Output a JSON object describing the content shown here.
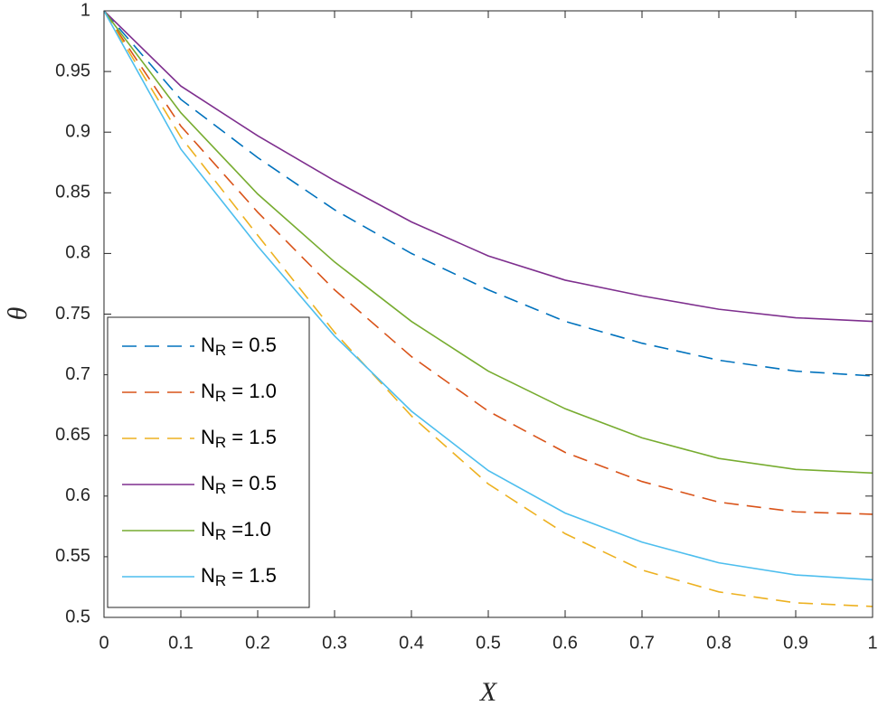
{
  "chart_data": {
    "type": "line",
    "x_label": "X",
    "y_label": "θ",
    "x": [
      0,
      0.1,
      0.2,
      0.3,
      0.4,
      0.5,
      0.6,
      0.7,
      0.8,
      0.9,
      1
    ],
    "series": [
      {
        "name": "N_R = 0.5",
        "color": "#0072bd",
        "line_style": "dashed",
        "values": [
          1,
          0.927,
          0.879,
          0.836,
          0.8,
          0.77,
          0.744,
          0.726,
          0.712,
          0.703,
          0.699
        ]
      },
      {
        "name": "N_R = 1.0",
        "color": "#d95319",
        "line_style": "dashed",
        "values": [
          1,
          0.905,
          0.834,
          0.77,
          0.715,
          0.67,
          0.636,
          0.612,
          0.595,
          0.587,
          0.585
        ]
      },
      {
        "name": "N_R = 1.5",
        "color": "#edb120",
        "line_style": "dashed",
        "values": [
          1,
          0.896,
          0.815,
          0.735,
          0.666,
          0.61,
          0.569,
          0.539,
          0.521,
          0.512,
          0.509
        ]
      },
      {
        "name": "N_R = 0.5",
        "color": "#7e2f8e",
        "line_style": "solid",
        "values": [
          1,
          0.938,
          0.897,
          0.86,
          0.826,
          0.798,
          0.778,
          0.765,
          0.754,
          0.747,
          0.744
        ]
      },
      {
        "name": "N_R =1.0",
        "color": "#77ac30",
        "line_style": "solid",
        "values": [
          1,
          0.916,
          0.849,
          0.793,
          0.744,
          0.703,
          0.672,
          0.648,
          0.631,
          0.622,
          0.619
        ]
      },
      {
        "name": "N_R = 1.5",
        "color": "#4dbeee",
        "line_style": "solid",
        "values": [
          1,
          0.886,
          0.806,
          0.732,
          0.67,
          0.621,
          0.586,
          0.562,
          0.545,
          0.535,
          0.531
        ]
      }
    ],
    "xlim": [
      0,
      1
    ],
    "ylim": [
      0.5,
      1
    ],
    "xticks": [
      0,
      0.1,
      0.2,
      0.3,
      0.4,
      0.5,
      0.6,
      0.7,
      0.8,
      0.9,
      1
    ],
    "yticks": [
      0.5,
      0.55,
      0.6,
      0.65,
      0.7,
      0.75,
      0.8,
      0.85,
      0.9,
      0.95,
      1
    ],
    "grid": false,
    "legend_position": "lower left"
  }
}
